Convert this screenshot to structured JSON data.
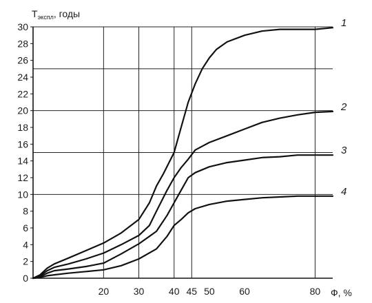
{
  "chart_data": {
    "type": "line",
    "ylabel_main": "T",
    "ylabel_sub": "экспл",
    "ylabel_suffix": ", годы",
    "xlabel": "Ф, %",
    "xlim": [
      0,
      85
    ],
    "ylim": [
      0,
      30
    ],
    "x_ticks": [
      20,
      30,
      40,
      45,
      50,
      60,
      80
    ],
    "y_ticks": [
      0,
      2,
      4,
      6,
      8,
      10,
      12,
      14,
      16,
      18,
      20,
      22,
      24,
      26,
      28,
      30
    ],
    "grid": {
      "vertical_lines": [
        20,
        30,
        40,
        45,
        80
      ],
      "horizontal_lines": [
        10,
        15,
        20,
        25,
        30
      ]
    },
    "series": [
      {
        "name": "1",
        "points": [
          [
            0,
            0
          ],
          [
            2,
            0.4
          ],
          [
            4,
            1.2
          ],
          [
            6,
            1.7
          ],
          [
            10,
            2.4
          ],
          [
            15,
            3.3
          ],
          [
            20,
            4.2
          ],
          [
            25,
            5.4
          ],
          [
            30,
            7.0
          ],
          [
            33,
            9.0
          ],
          [
            35,
            11.0
          ],
          [
            37,
            12.5
          ],
          [
            40,
            15.0
          ],
          [
            42,
            18.0
          ],
          [
            44,
            21.0
          ],
          [
            46,
            23.2
          ],
          [
            48,
            25.0
          ],
          [
            50,
            26.3
          ],
          [
            52,
            27.3
          ],
          [
            55,
            28.2
          ],
          [
            60,
            29.0
          ],
          [
            65,
            29.5
          ],
          [
            70,
            29.7
          ],
          [
            75,
            29.7
          ],
          [
            80,
            29.7
          ],
          [
            85,
            29.9
          ]
        ]
      },
      {
        "name": "2",
        "points": [
          [
            0,
            0
          ],
          [
            2,
            0.3
          ],
          [
            4,
            0.9
          ],
          [
            6,
            1.3
          ],
          [
            10,
            1.7
          ],
          [
            15,
            2.3
          ],
          [
            20,
            3.0
          ],
          [
            25,
            4.0
          ],
          [
            30,
            5.1
          ],
          [
            33,
            6.3
          ],
          [
            35,
            8.0
          ],
          [
            38,
            10.5
          ],
          [
            40,
            12.0
          ],
          [
            42,
            13.2
          ],
          [
            44,
            14.2
          ],
          [
            46,
            15.3
          ],
          [
            50,
            16.2
          ],
          [
            55,
            17.0
          ],
          [
            60,
            17.8
          ],
          [
            65,
            18.6
          ],
          [
            70,
            19.1
          ],
          [
            75,
            19.5
          ],
          [
            80,
            19.8
          ],
          [
            85,
            19.9
          ]
        ]
      },
      {
        "name": "3",
        "points": [
          [
            0,
            0
          ],
          [
            2,
            0.2
          ],
          [
            4,
            0.6
          ],
          [
            6,
            0.9
          ],
          [
            10,
            1.1
          ],
          [
            15,
            1.4
          ],
          [
            20,
            1.8
          ],
          [
            25,
            2.9
          ],
          [
            30,
            4.1
          ],
          [
            33,
            5.0
          ],
          [
            35,
            5.6
          ],
          [
            38,
            7.5
          ],
          [
            40,
            9.0
          ],
          [
            42,
            10.5
          ],
          [
            44,
            12.0
          ],
          [
            46,
            12.6
          ],
          [
            50,
            13.3
          ],
          [
            55,
            13.8
          ],
          [
            60,
            14.1
          ],
          [
            65,
            14.4
          ],
          [
            70,
            14.5
          ],
          [
            75,
            14.7
          ],
          [
            80,
            14.7
          ],
          [
            85,
            14.7
          ]
        ]
      },
      {
        "name": "4",
        "points": [
          [
            0,
            0
          ],
          [
            2,
            0.1
          ],
          [
            4,
            0.3
          ],
          [
            6,
            0.4
          ],
          [
            10,
            0.6
          ],
          [
            15,
            0.8
          ],
          [
            20,
            1.0
          ],
          [
            25,
            1.5
          ],
          [
            30,
            2.3
          ],
          [
            35,
            3.5
          ],
          [
            38,
            5.0
          ],
          [
            40,
            6.3
          ],
          [
            42,
            7.0
          ],
          [
            44,
            7.8
          ],
          [
            46,
            8.3
          ],
          [
            50,
            8.8
          ],
          [
            55,
            9.2
          ],
          [
            60,
            9.4
          ],
          [
            65,
            9.6
          ],
          [
            70,
            9.7
          ],
          [
            75,
            9.8
          ],
          [
            80,
            9.8
          ],
          [
            85,
            9.8
          ]
        ]
      }
    ]
  }
}
